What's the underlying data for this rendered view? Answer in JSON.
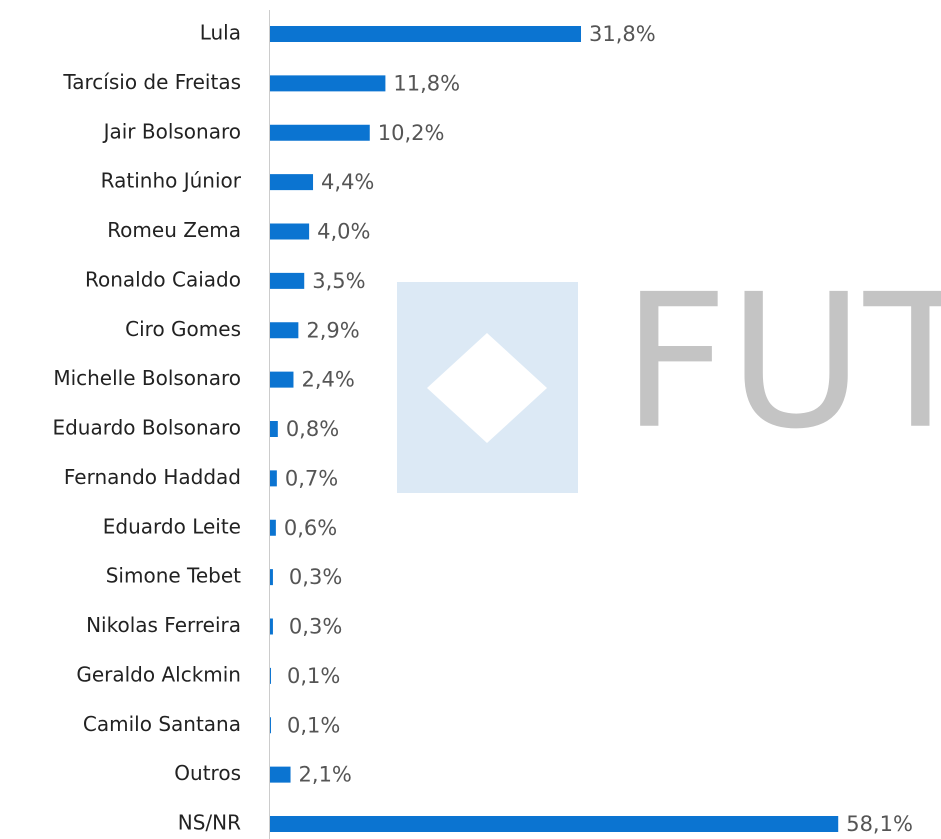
{
  "chart_data": {
    "type": "bar",
    "orientation": "horizontal",
    "watermark": "FUTU",
    "categories": [
      "Lula",
      "Tarcísio de Freitas",
      "Jair Bolsonaro",
      "Ratinho Júnior",
      "Romeu Zema",
      "Ronaldo Caiado",
      "Ciro Gomes",
      "Michelle Bolsonaro",
      "Eduardo Bolsonaro",
      "Fernando Haddad",
      "Eduardo Leite",
      "Simone Tebet",
      "Nikolas Ferreira",
      "Geraldo Alckmin",
      "Camilo Santana",
      "Outros",
      "NS/NR"
    ],
    "values": [
      31.8,
      11.8,
      10.2,
      4.4,
      4.0,
      3.5,
      2.9,
      2.4,
      0.8,
      0.7,
      0.6,
      0.3,
      0.3,
      0.1,
      0.1,
      2.1,
      58.1
    ],
    "value_labels": [
      "31,8%",
      "11,8%",
      "10,2%",
      "4,4%",
      "4,0%",
      "3,5%",
      "2,9%",
      "2,4%",
      "0,8%",
      "0,7%",
      "0,6%",
      "0,3%",
      "0,3%",
      "0,1%",
      "0,1%",
      "2,1%",
      "58,1%"
    ],
    "color": "#0b74d1"
  }
}
